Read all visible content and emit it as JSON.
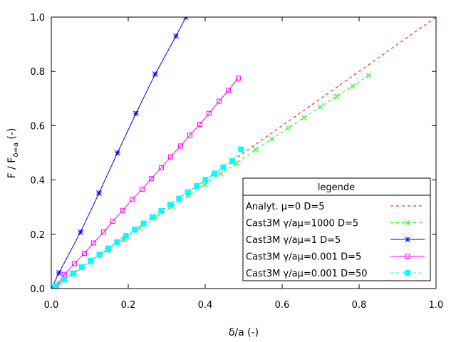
{
  "chart_data": {
    "type": "line",
    "xlabel": "δ/a (-)",
    "ylabel_main": "F / F",
    "ylabel_sub": "δ=a",
    "ylabel_suffix": " (-)",
    "xlim": [
      0,
      1
    ],
    "ylim": [
      0,
      1
    ],
    "xticks": [
      0,
      0.2,
      0.4,
      0.6,
      0.8,
      1
    ],
    "yticks": [
      0,
      0.2,
      0.4,
      0.6,
      0.8,
      1
    ],
    "xtick_labels": [
      "0.0",
      "0.2",
      "0.4",
      "0.6",
      "0.8",
      "1.0"
    ],
    "ytick_labels": [
      "0.0",
      "0.2",
      "0.4",
      "0.6",
      "0.8",
      "1.0"
    ],
    "grid": false,
    "legend_title": "legende",
    "legend_position": "bottom-right",
    "series": [
      {
        "name": "Analyt. μ=0 D=5",
        "color": "#ff0000",
        "dash": "dashed",
        "marker": "none",
        "x": [
          0,
          1
        ],
        "y": [
          0,
          1
        ]
      },
      {
        "name": "Cast3M γ/aμ=1000 D=5",
        "color": "#00ff00",
        "dash": "dashed",
        "marker": "x",
        "x": [
          0.02,
          0.062,
          0.104,
          0.146,
          0.188,
          0.23,
          0.272,
          0.314,
          0.356,
          0.398,
          0.44,
          0.482,
          0.531,
          0.573,
          0.615,
          0.657,
          0.699,
          0.741,
          0.783,
          0.825
        ],
        "y": [
          0.018,
          0.058,
          0.099,
          0.14,
          0.181,
          0.222,
          0.262,
          0.303,
          0.343,
          0.383,
          0.423,
          0.462,
          0.512,
          0.551,
          0.591,
          0.63,
          0.669,
          0.708,
          0.746,
          0.785
        ]
      },
      {
        "name": "Cast3M γ/aμ=1 D=5",
        "color": "#0000ff",
        "dash": "solid",
        "marker": "star",
        "x": [
          0,
          0.02,
          0.076,
          0.124,
          0.172,
          0.22,
          0.27,
          0.324,
          0.35
        ],
        "y": [
          0,
          0.058,
          0.208,
          0.352,
          0.5,
          0.645,
          0.79,
          0.93,
          1.0
        ]
      },
      {
        "name": "Cast3M γ/aμ=0.001 D=5",
        "color": "#ff00ff",
        "dash": "solid",
        "marker": "square",
        "x": [
          0,
          0.013,
          0.034,
          0.06,
          0.086,
          0.11,
          0.136,
          0.16,
          0.186,
          0.21,
          0.236,
          0.26,
          0.286,
          0.31,
          0.336,
          0.36,
          0.386,
          0.41,
          0.436,
          0.46,
          0.486
        ],
        "y": [
          0,
          0.01,
          0.052,
          0.092,
          0.13,
          0.168,
          0.208,
          0.248,
          0.288,
          0.328,
          0.366,
          0.405,
          0.445,
          0.485,
          0.525,
          0.565,
          0.605,
          0.645,
          0.69,
          0.73,
          0.775
        ]
      },
      {
        "name": "Cast3M γ/aμ=0.001 D=50",
        "color": "#00ffff",
        "dash": "dashed",
        "marker": "filled-square",
        "x": [
          0.01,
          0.033,
          0.056,
          0.079,
          0.102,
          0.125,
          0.148,
          0.171,
          0.194,
          0.217,
          0.24,
          0.263,
          0.286,
          0.309,
          0.332,
          0.355,
          0.378,
          0.401,
          0.424,
          0.447,
          0.47,
          0.493
        ],
        "y": [
          0.01,
          0.033,
          0.056,
          0.079,
          0.102,
          0.125,
          0.148,
          0.171,
          0.194,
          0.217,
          0.24,
          0.263,
          0.286,
          0.309,
          0.332,
          0.355,
          0.378,
          0.401,
          0.424,
          0.447,
          0.47,
          0.513
        ]
      }
    ]
  }
}
